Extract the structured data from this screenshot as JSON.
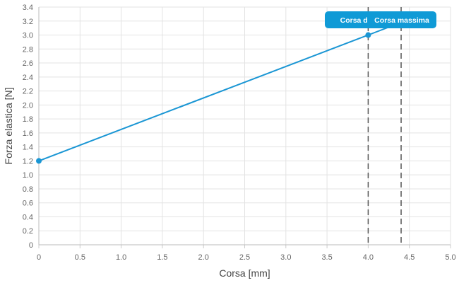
{
  "chart_data": {
    "type": "line",
    "xlabel": "Corsa [mm]",
    "ylabel": "Forza elastica [N]",
    "xlim": [
      0,
      5.0
    ],
    "ylim": [
      0,
      3.4
    ],
    "x_ticks": [
      "0",
      "0.5",
      "1.0",
      "1.5",
      "2.0",
      "2.5",
      "3.0",
      "3.5",
      "4.0",
      "4.5",
      "5.0"
    ],
    "y_ticks": [
      "0",
      "0.2",
      "0.4",
      "0.6",
      "0.8",
      "1.0",
      "1.2",
      "1.4",
      "1.6",
      "1.8",
      "2.0",
      "2.2",
      "2.4",
      "2.6",
      "2.8",
      "3.0",
      "3.2",
      "3.4"
    ],
    "grid": true,
    "series": [
      {
        "color": "#1a96d4",
        "points": [
          [
            0,
            1.2
          ],
          [
            4.0,
            3.0
          ],
          [
            4.4,
            3.18
          ]
        ],
        "markers": [
          [
            0,
            1.2
          ],
          [
            4.0,
            3.0
          ]
        ]
      }
    ],
    "vlines": [
      {
        "x": 4.0,
        "label": "Corsa di e",
        "color": "#555555"
      },
      {
        "x": 4.4,
        "label": "Corsa massima",
        "color": "#555555"
      }
    ],
    "annotation_color": "#0f9ad6"
  }
}
